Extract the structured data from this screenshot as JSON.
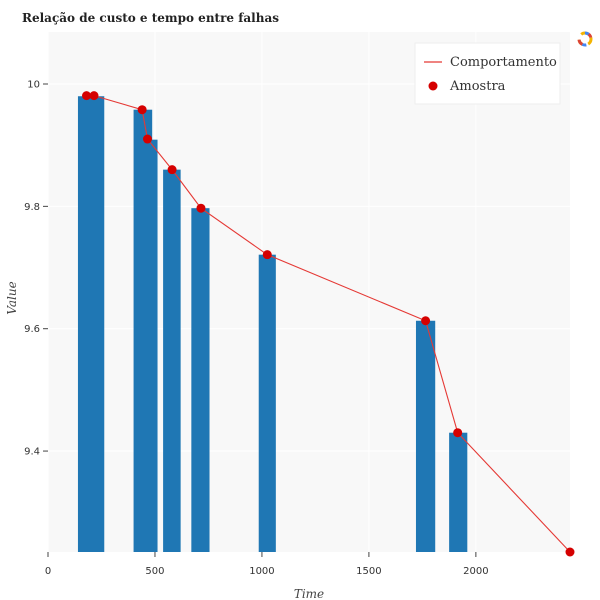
{
  "chart_data": {
    "type": "bar",
    "title": "Relação de custo e tempo entre falhas",
    "xlabel": "Time",
    "ylabel": "Value",
    "xlim": [
      0,
      2440
    ],
    "ylim": [
      9.235,
      10.085
    ],
    "xticks": [
      0,
      500,
      1000,
      1500,
      2000
    ],
    "xtick_labels": [
      "0",
      "500",
      "1000",
      "1500",
      "2000"
    ],
    "yticks": [
      9.4,
      9.6,
      9.8,
      10.0
    ],
    "ytick_labels": [
      "9.4",
      "9.6",
      "9.8",
      "10"
    ],
    "grid": true,
    "legend_position": "top-right",
    "bars": [
      {
        "x_start": 140,
        "x_end": 263,
        "value": 9.98
      },
      {
        "x_start": 400,
        "x_end": 487,
        "value": 9.958
      },
      {
        "x_start": 440,
        "x_end": 512,
        "value": 9.909
      },
      {
        "x_start": 538,
        "x_end": 620,
        "value": 9.86
      },
      {
        "x_start": 670,
        "x_end": 755,
        "value": 9.797
      },
      {
        "x_start": 985,
        "x_end": 1065,
        "value": 9.721
      },
      {
        "x_start": 1720,
        "x_end": 1810,
        "value": 9.613
      },
      {
        "x_start": 1875,
        "x_end": 1960,
        "value": 9.43
      }
    ],
    "series": [
      {
        "name": "Comportamento",
        "type": "line",
        "color": "#e53935",
        "x": [
          180,
          215,
          440,
          465,
          580,
          715,
          1025,
          1765,
          1915,
          2440
        ],
        "y": [
          9.981,
          9.981,
          9.958,
          9.91,
          9.86,
          9.797,
          9.721,
          9.613,
          9.43,
          9.235
        ]
      },
      {
        "name": "Amostra",
        "type": "scatter",
        "color": "#d50000",
        "x": [
          180,
          215,
          440,
          465,
          580,
          715,
          1025,
          1765,
          1915,
          2440
        ],
        "y": [
          9.981,
          9.981,
          9.958,
          9.91,
          9.86,
          9.797,
          9.721,
          9.613,
          9.43,
          9.235
        ]
      }
    ],
    "colors": {
      "bar": "#1f77b4",
      "plot_background": "#f8f8f8",
      "grid": "#ffffff"
    }
  }
}
